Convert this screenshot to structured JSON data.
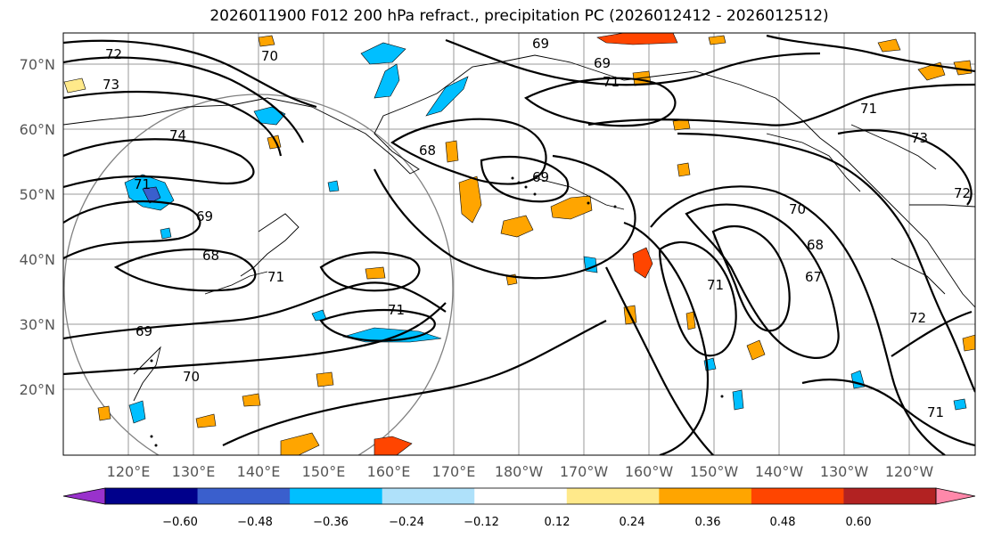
{
  "title": "2026011900 F012 200 hPa refract., precipitation PC (2026012412 - 2026012512)",
  "lat_labels": [
    "70°N",
    "60°N",
    "50°N",
    "40°N",
    "30°N",
    "20°N"
  ],
  "lon_labels": [
    "120°E",
    "130°E",
    "140°E",
    "150°E",
    "160°E",
    "170°E",
    "180°W",
    "170°W",
    "160°W",
    "150°W",
    "140°W",
    "130°W",
    "120°W"
  ],
  "contour_labels": [
    "72",
    "73",
    "70",
    "74",
    "71",
    "69",
    "68",
    "69",
    "71",
    "68",
    "69",
    "71",
    "71",
    "69",
    "70",
    "69",
    "71",
    "73",
    "72",
    "70",
    "68",
    "67",
    "71",
    "72",
    "71"
  ],
  "colorbar": {
    "ticks": [
      "−0.60",
      "−0.48",
      "−0.36",
      "−0.24",
      "−0.12",
      "0.12",
      "0.24",
      "0.36",
      "0.48",
      "0.60"
    ],
    "colors": [
      "#9932cc",
      "#00008b",
      "#3a5fcd",
      "#00bfff",
      "#afe1fa",
      "#ffffff",
      "#ffe98a",
      "#ffa500",
      "#ff4500",
      "#b22222",
      "#ff88aa"
    ]
  },
  "colors": {
    "land_outline": "#000000",
    "grid": "#9a9a9a",
    "contour": "#000000"
  }
}
